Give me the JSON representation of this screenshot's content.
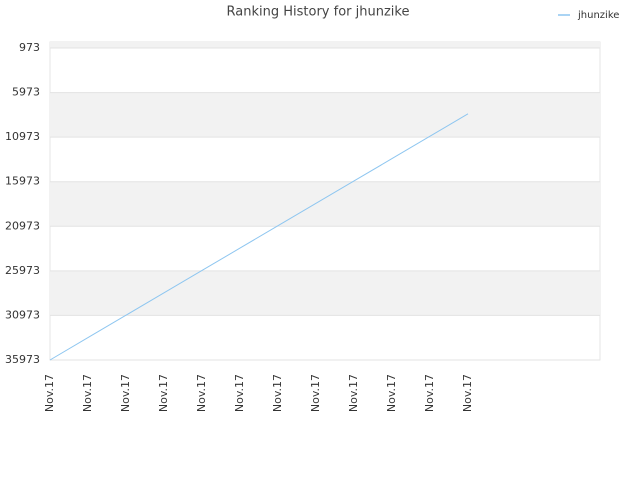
{
  "chart_data": {
    "type": "line",
    "title": "Ranking History for jhunzike",
    "categories": [
      "Nov.17",
      "Nov.17",
      "Nov.17",
      "Nov.17",
      "Nov.17",
      "Nov.17",
      "Nov.17",
      "Nov.17",
      "Nov.17",
      "Nov.17",
      "Nov.17",
      "Nov.17"
    ],
    "series": [
      {
        "name": "jhunzike",
        "color": "#8ec6f0",
        "values": [
          35973,
          33460,
          30950,
          28440,
          25930,
          23420,
          20910,
          18400,
          15890,
          13380,
          10870,
          8360
        ]
      }
    ],
    "ylim": [
      35973,
      300
    ],
    "yticks": [
      973,
      5973,
      10973,
      15973,
      20973,
      25973,
      30973,
      35973
    ],
    "grid": true,
    "legend": "top-right"
  }
}
